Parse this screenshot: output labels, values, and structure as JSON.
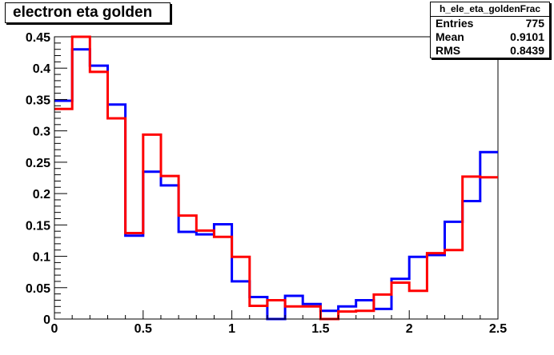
{
  "title": "electron eta golden",
  "stats": {
    "name": "h_ele_eta_goldenFrac",
    "rows": [
      {
        "label": "Entries",
        "value": "775"
      },
      {
        "label": "Mean",
        "value": "0.9101"
      },
      {
        "label": "RMS",
        "value": "0.8439"
      }
    ]
  },
  "chart_data": {
    "type": "line",
    "title": "electron eta golden",
    "xlabel": "",
    "ylabel": "",
    "xlim": [
      0,
      2.5
    ],
    "ylim": [
      0,
      0.45
    ],
    "bin_width": 0.1,
    "x_ticks": [
      {
        "value": 0,
        "label": "0"
      },
      {
        "value": 0.5,
        "label": "0.5"
      },
      {
        "value": 1,
        "label": "1"
      },
      {
        "value": 1.5,
        "label": "1.5"
      },
      {
        "value": 2,
        "label": "2"
      },
      {
        "value": 2.5,
        "label": "2.5"
      }
    ],
    "y_ticks": [
      {
        "value": 0,
        "label": "0"
      },
      {
        "value": 0.05,
        "label": "0.05"
      },
      {
        "value": 0.1,
        "label": "0.1"
      },
      {
        "value": 0.15,
        "label": "0.15"
      },
      {
        "value": 0.2,
        "label": "0.2"
      },
      {
        "value": 0.25,
        "label": "0.25"
      },
      {
        "value": 0.3,
        "label": "0.3"
      },
      {
        "value": 0.35,
        "label": "0.35"
      },
      {
        "value": 0.4,
        "label": "0.4"
      },
      {
        "value": 0.45,
        "label": "0.45"
      }
    ],
    "series": [
      {
        "color": "#0000ff",
        "values": [
          0.348,
          0.43,
          0.404,
          0.342,
          0.133,
          0.235,
          0.213,
          0.139,
          0.135,
          0.151,
          0.06,
          0.035,
          0.0,
          0.037,
          0.024,
          0.013,
          0.02,
          0.03,
          0.016,
          0.064,
          0.099,
          0.102,
          0.155,
          0.188,
          0.266
        ]
      },
      {
        "color": "#ff0000",
        "values": [
          0.335,
          0.46,
          0.394,
          0.32,
          0.137,
          0.294,
          0.228,
          0.165,
          0.141,
          0.131,
          0.099,
          0.021,
          0.03,
          0.02,
          0.02,
          0.0,
          0.012,
          0.013,
          0.039,
          0.058,
          0.045,
          0.105,
          0.11,
          0.227,
          0.226
        ]
      }
    ]
  }
}
